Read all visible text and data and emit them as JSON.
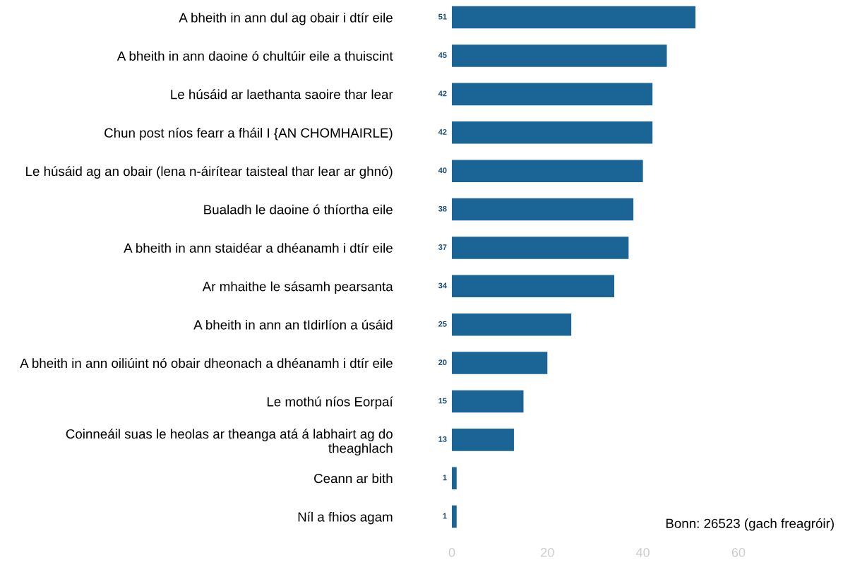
{
  "chart_data": {
    "type": "bar",
    "orientation": "horizontal",
    "categories": [
      "A bheith in ann dul ag obair i dtír eile",
      "A bheith in ann daoine ó chultúir eile a thuiscint",
      "Le húsáid ar laethanta saoire thar lear",
      "Chun post níos fearr a fháil I {AN CHOMHAIRLE)",
      "Le húsáid ag an obair (lena n-áirítear taisteal thar lear ar ghnó)",
      "Bualadh le daoine ó thíortha eile",
      "A bheith in ann staidéar a dhéanamh i dtír eile",
      "Ar mhaithe le sásamh pearsanta",
      "A bheith in ann an tIdirlíon a úsáid",
      "A bheith in ann oiliúint nó obair dheonach a dhéanamh i dtír eile",
      "Le mothú níos Eorpaí",
      "Coinneáil suas le heolas ar theanga atá á labhairt ag do theaghlach",
      "Ceann ar bith",
      "Níl a fhios agam"
    ],
    "values": [
      51,
      45,
      42,
      42,
      40,
      38,
      37,
      34,
      25,
      20,
      15,
      13,
      1,
      1
    ],
    "color": "#1a6496",
    "data_labels": true,
    "xlim": [
      0,
      60
    ],
    "xticks": [
      0,
      20,
      40,
      60
    ],
    "grid": false,
    "legend": false,
    "annotations": [
      "Bonn: 26523 (gach freagróir)"
    ]
  }
}
